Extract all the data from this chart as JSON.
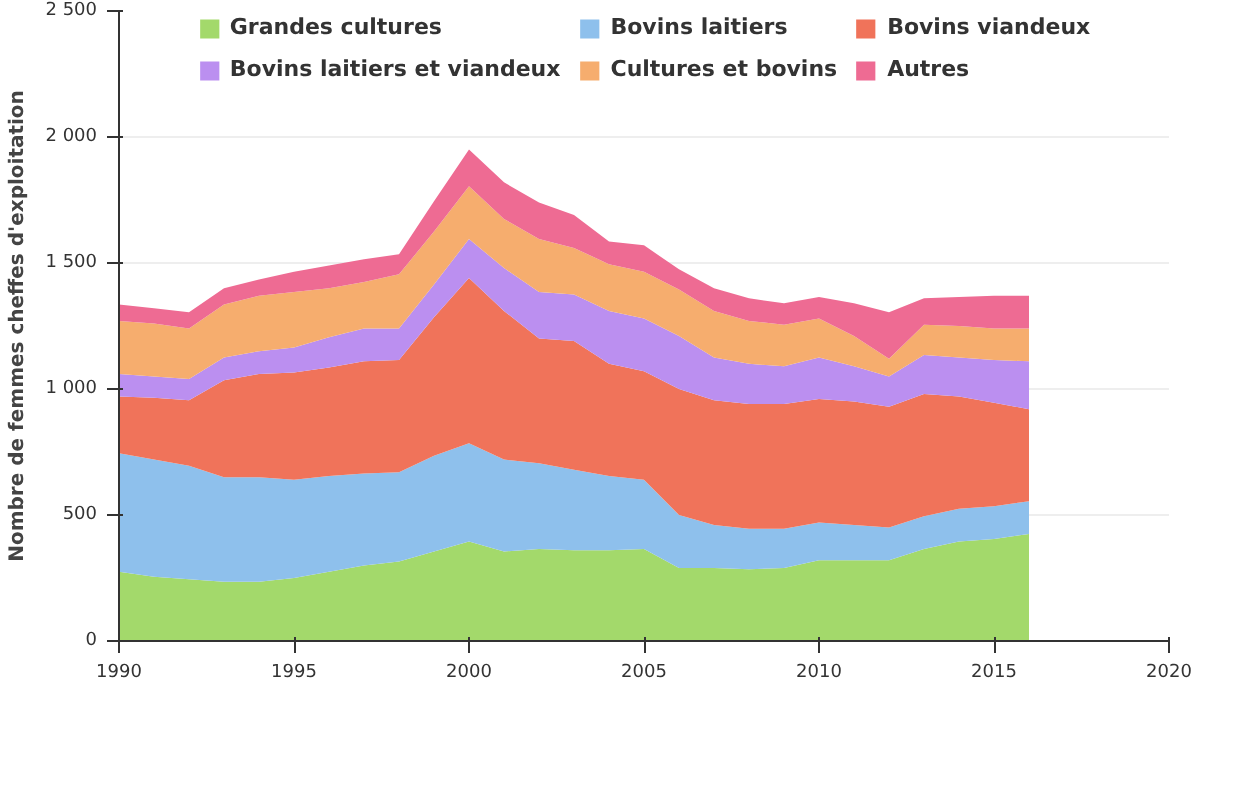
{
  "chart_data": {
    "type": "area",
    "stacked": true,
    "ylabel": "Nombre de femmes cheffes d'exploitation",
    "x": [
      1990,
      1991,
      1992,
      1993,
      1994,
      1995,
      1996,
      1997,
      1998,
      1999,
      2000,
      2001,
      2002,
      2003,
      2004,
      2005,
      2006,
      2007,
      2008,
      2009,
      2010,
      2011,
      2012,
      2013,
      2014,
      2015,
      2016
    ],
    "series": [
      {
        "name": "Grandes cultures",
        "color": "#a3d96b",
        "values": [
          275,
          255,
          245,
          235,
          235,
          250,
          275,
          300,
          315,
          355,
          395,
          355,
          365,
          360,
          360,
          365,
          290,
          290,
          285,
          290,
          320,
          320,
          320,
          365,
          395,
          405,
          425
        ]
      },
      {
        "name": "Bovins laitiers",
        "color": "#8ec0ec",
        "values": [
          470,
          465,
          450,
          415,
          415,
          390,
          380,
          365,
          355,
          380,
          390,
          365,
          340,
          320,
          295,
          275,
          210,
          170,
          160,
          155,
          150,
          140,
          130,
          130,
          130,
          130,
          130
        ]
      },
      {
        "name": "Bovins viandeux",
        "color": "#f0735a",
        "values": [
          225,
          245,
          260,
          385,
          410,
          425,
          430,
          445,
          445,
          550,
          655,
          590,
          495,
          510,
          445,
          430,
          500,
          495,
          495,
          495,
          490,
          490,
          480,
          485,
          445,
          410,
          365
        ]
      },
      {
        "name": "Bovins laitiers et viandeux",
        "color": "#bb8ff0",
        "values": [
          90,
          85,
          85,
          90,
          90,
          100,
          120,
          130,
          125,
          130,
          155,
          170,
          185,
          185,
          210,
          210,
          210,
          170,
          160,
          150,
          165,
          140,
          120,
          155,
          155,
          170,
          190
        ]
      },
      {
        "name": "Cultures et bovins",
        "color": "#f6ad6e",
        "values": [
          210,
          210,
          200,
          210,
          220,
          220,
          195,
          185,
          215,
          210,
          210,
          195,
          210,
          185,
          185,
          185,
          185,
          185,
          170,
          165,
          155,
          120,
          70,
          120,
          125,
          125,
          130
        ]
      },
      {
        "name": "Autres",
        "color": "#ee6b93",
        "values": [
          65,
          60,
          65,
          65,
          65,
          80,
          90,
          90,
          80,
          120,
          145,
          145,
          145,
          130,
          90,
          105,
          80,
          90,
          90,
          85,
          85,
          130,
          185,
          105,
          115,
          130,
          130
        ]
      }
    ],
    "xlim": [
      1990,
      2020
    ],
    "xticks": [
      1990,
      1995,
      2000,
      2005,
      2010,
      2015,
      2020
    ],
    "ylim": [
      0,
      2500
    ],
    "yticks": [
      0,
      500,
      {
        "value": 1000,
        "label": "1 000"
      },
      {
        "value": 1500,
        "label": "1 500"
      },
      {
        "value": 2000,
        "label": "2 000"
      },
      {
        "value": 2500,
        "label": "2 500"
      }
    ],
    "grid": "y",
    "legend": "top"
  }
}
